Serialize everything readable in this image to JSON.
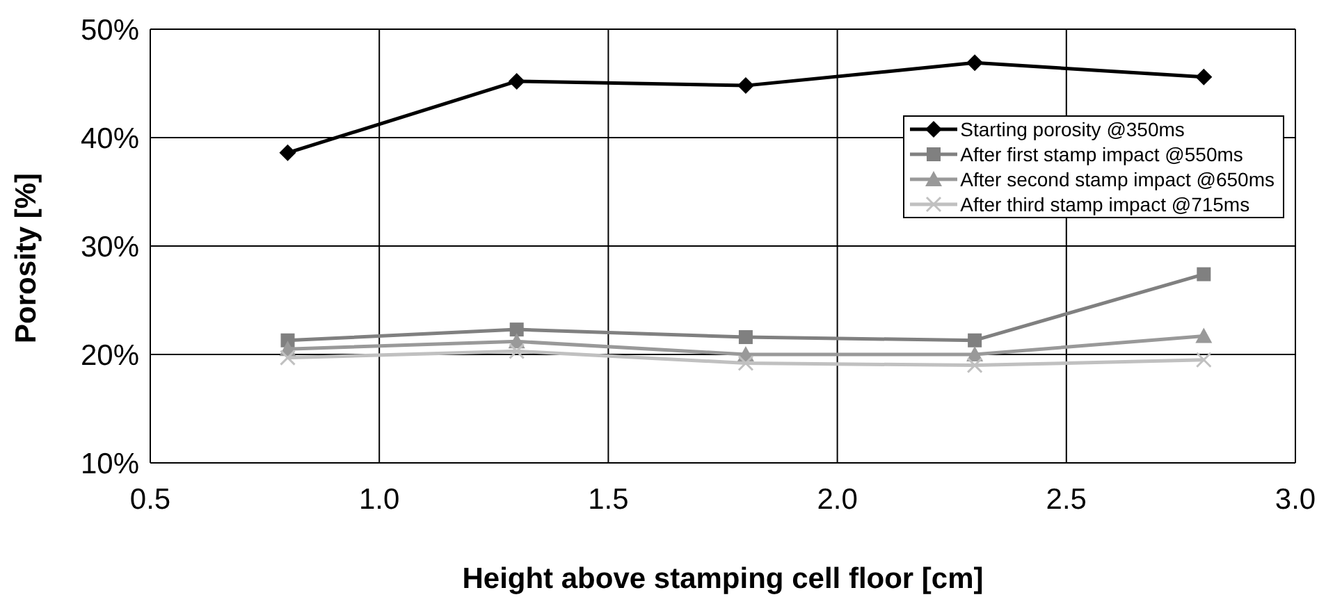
{
  "chart_data": {
    "type": "line",
    "xlabel": "Height above stamping cell floor [cm]",
    "ylabel": "Porosity [%]",
    "x": [
      0.8,
      1.3,
      1.8,
      2.3,
      2.8
    ],
    "series": [
      {
        "name": "Starting porosity @350ms",
        "color": "#000000",
        "marker": "diamond",
        "values": [
          38.6,
          45.2,
          44.8,
          46.9,
          45.6
        ]
      },
      {
        "name": "After first stamp impact @550ms",
        "color": "#808080",
        "marker": "square",
        "values": [
          21.3,
          22.3,
          21.6,
          21.3,
          27.4
        ]
      },
      {
        "name": "After second stamp impact @650ms",
        "color": "#999999",
        "marker": "triangle",
        "values": [
          20.5,
          21.2,
          20.0,
          20.0,
          21.7
        ]
      },
      {
        "name": "After third stamp impact @715ms",
        "color": "#c0c0c0",
        "marker": "cross",
        "values": [
          19.7,
          20.3,
          19.2,
          19.0,
          19.5
        ]
      }
    ],
    "xlim": [
      0.5,
      3.0
    ],
    "xticks": [
      {
        "value": 0.5,
        "label": "0.5"
      },
      {
        "value": 1,
        "label": "1.0"
      },
      {
        "value": 1.5,
        "label": "1.5"
      },
      {
        "value": 2,
        "label": "2.0"
      },
      {
        "value": 2.5,
        "label": "2.5"
      },
      {
        "value": 3,
        "label": "3.0"
      }
    ],
    "ylim": [
      10,
      50
    ],
    "yticks": [
      {
        "value": 10,
        "label": "10%"
      },
      {
        "value": 20,
        "label": "20%"
      },
      {
        "value": 30,
        "label": "30%"
      },
      {
        "value": 40,
        "label": "40%"
      },
      {
        "value": 50,
        "label": "50%"
      }
    ],
    "grid": true,
    "legend": "right",
    "line_style": "solid"
  }
}
